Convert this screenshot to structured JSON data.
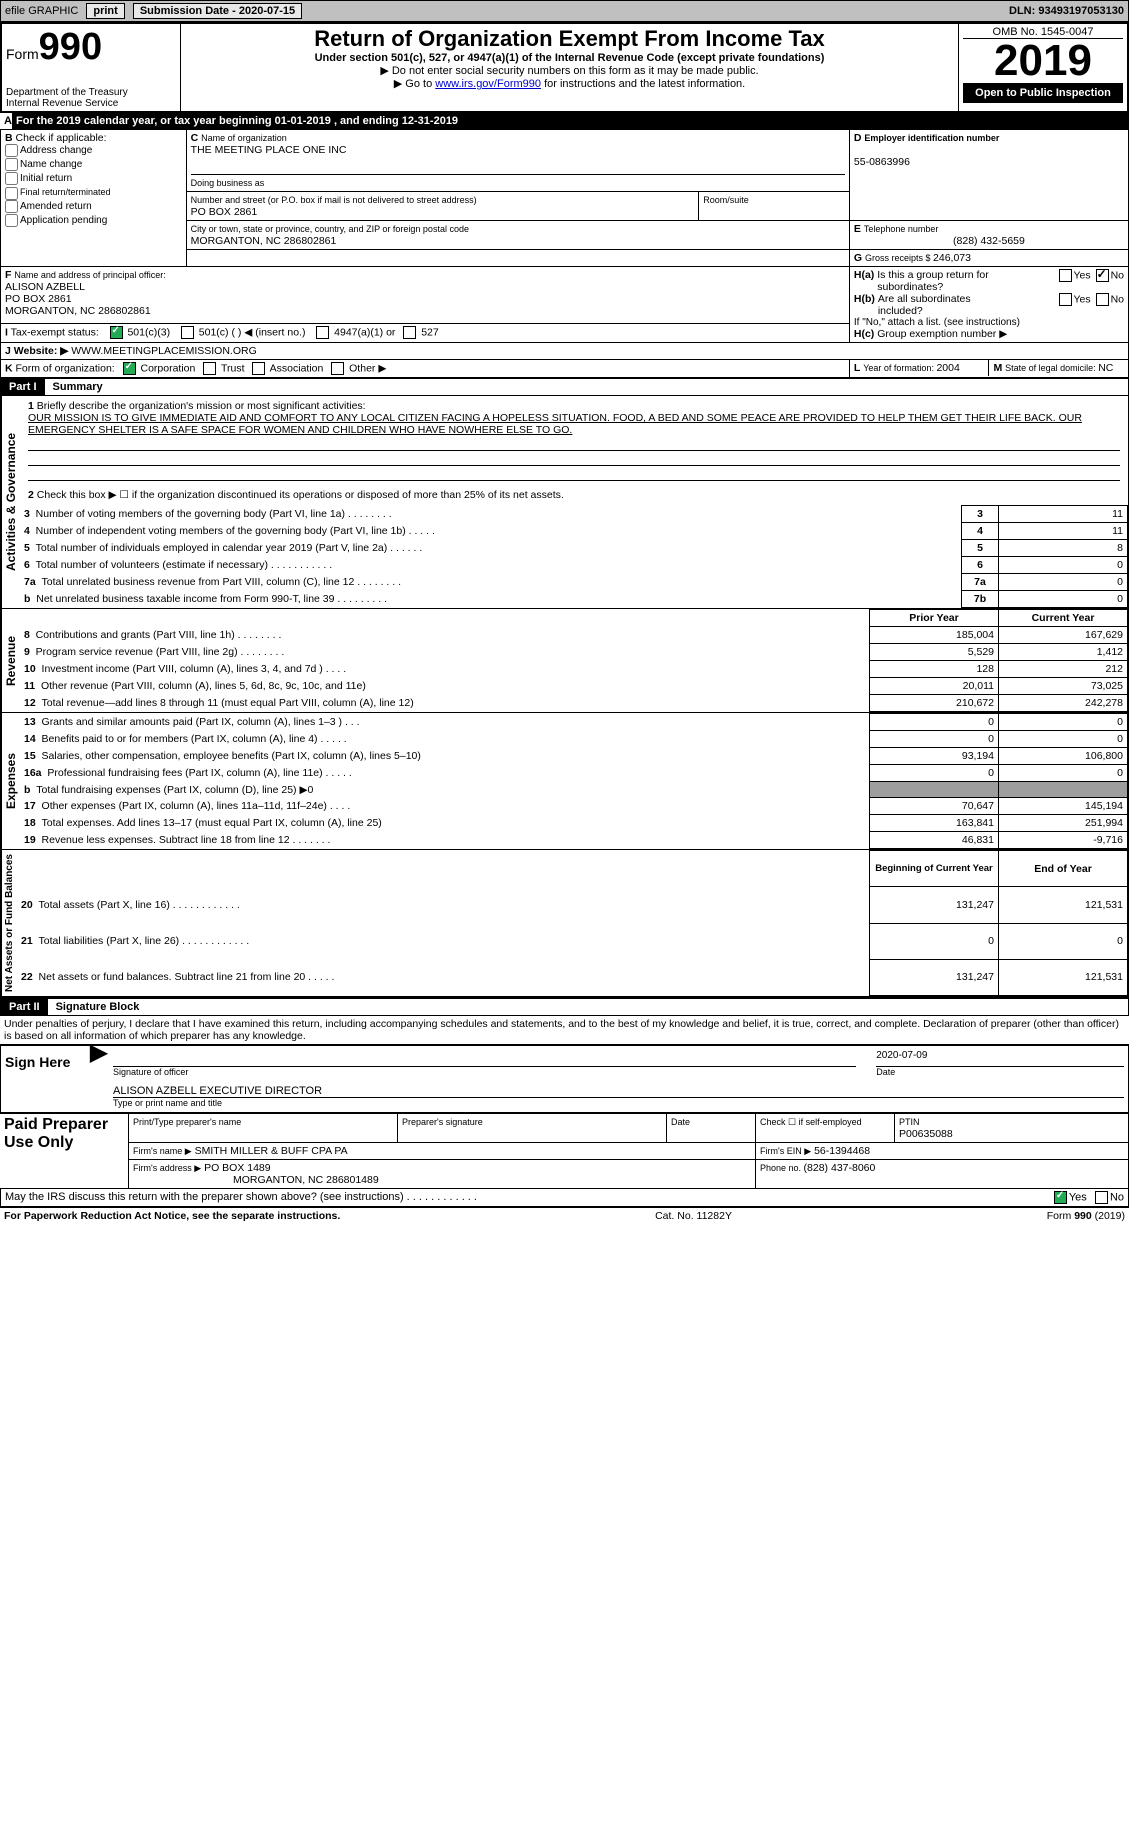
{
  "topbar": {
    "efile": "efile GRAPHIC",
    "print": "print",
    "submission_label": "Submission Date - ",
    "submission_date": "2020-07-15",
    "dln_label": "DLN: ",
    "dln": "93493197053130"
  },
  "header": {
    "form_word": "Form",
    "form_num": "990",
    "dept": "Department of the Treasury\nInternal Revenue Service",
    "title": "Return of Organization Exempt From Income Tax",
    "subtitle": "Under section 501(c), 527, or 4947(a)(1) of the Internal Revenue Code (except private foundations)",
    "note1": "▶ Do not enter social security numbers on this form as it may be made public.",
    "note2_pre": "▶ Go to ",
    "note2_link": "www.irs.gov/Form990",
    "note2_post": " for instructions and the latest information.",
    "omb": "OMB No. 1545-0047",
    "year": "2019",
    "open": "Open to Public Inspection"
  },
  "cal": {
    "label": "A",
    "text_pre": "For the 2019 calendar year, or tax year beginning ",
    "begin": "01-01-2019",
    "mid": "  , and ending ",
    "end": "12-31-2019"
  },
  "B": {
    "label": "B",
    "check_if": "Check if applicable:",
    "items": [
      "Address change",
      "Name change",
      "Initial return",
      "Final return/terminated",
      "Amended return",
      "Application pending"
    ]
  },
  "C": {
    "label": "C",
    "name_lbl": "Name of organization",
    "name": "THE MEETING PLACE ONE INC",
    "dba_lbl": "Doing business as",
    "dba": "",
    "street_lbl": "Number and street (or P.O. box if mail is not delivered to street address)",
    "room_lbl": "Room/suite",
    "street": "PO BOX 2861",
    "city_lbl": "City or town, state or province, country, and ZIP or foreign postal code",
    "city": "MORGANTON, NC  286802861"
  },
  "D": {
    "label": "D",
    "lbl": "Employer identification number",
    "val": "55-0863996"
  },
  "E": {
    "label": "E",
    "lbl": "Telephone number",
    "val": "(828) 432-5659"
  },
  "G": {
    "label": "G",
    "lbl": "Gross receipts $ ",
    "val": "246,073"
  },
  "F": {
    "label": "F",
    "lbl": "Name and address of principal officer:",
    "name": "ALISON AZBELL",
    "addr1": "PO BOX 2861",
    "addr2": "MORGANTON, NC  286802861"
  },
  "H": {
    "a_lbl": "H(a)",
    "a_txt": "Is this a group return for subordinates?",
    "b_lbl": "H(b)",
    "b_txt": "Are all subordinates included?",
    "b_note": "If \"No,\" attach a list. (see instructions)",
    "c_lbl": "H(c)",
    "c_txt": "Group exemption number ▶",
    "yes": "Yes",
    "no": "No"
  },
  "I": {
    "label": "I",
    "lbl": "Tax-exempt status:",
    "opts": [
      "501(c)(3)",
      "501(c) (  ) ◀ (insert no.)",
      "4947(a)(1) or",
      "527"
    ]
  },
  "J": {
    "label": "J",
    "lbl": "Website: ▶",
    "val": "WWW.MEETINGPLACEMISSION.ORG"
  },
  "K": {
    "label": "K",
    "lbl": "Form of organization:",
    "opts": [
      "Corporation",
      "Trust",
      "Association",
      "Other ▶"
    ]
  },
  "L": {
    "label": "L",
    "lbl": "Year of formation: ",
    "val": "2004"
  },
  "M": {
    "label": "M",
    "lbl": "State of legal domicile: ",
    "val": "NC"
  },
  "part1": {
    "num": "Part I",
    "title": "Summary",
    "q1_num": "1",
    "q1": "Briefly describe the organization's mission or most significant activities:",
    "mission": "OUR MISSION IS TO GIVE IMMEDIATE AID AND COMFORT TO ANY LOCAL CITIZEN FACING A HOPELESS SITUATION. FOOD, A BED AND SOME PEACE ARE PROVIDED TO HELP THEM GET THEIR LIFE BACK. OUR EMERGENCY SHELTER IS A SAFE SPACE FOR WOMEN AND CHILDREN WHO HAVE NOWHERE ELSE TO GO.",
    "q2_num": "2",
    "q2": "Check this box ▶ ☐  if the organization discontinued its operations or disposed of more than 25% of its net assets.",
    "side_gov": "Activities & Governance",
    "side_rev": "Revenue",
    "side_exp": "Expenses",
    "side_net": "Net Assets or Fund Balances",
    "rows_gov": [
      {
        "n": "3",
        "d": "Number of voting members of the governing body (Part VI, line 1a)   .     .     .     .     .     .     .     .",
        "ln": "3",
        "v": "11"
      },
      {
        "n": "4",
        "d": "Number of independent voting members of the governing body (Part VI, line 1b)    .     .     .     .     .",
        "ln": "4",
        "v": "11"
      },
      {
        "n": "5",
        "d": "Total number of individuals employed in calendar year 2019 (Part V, line 2a)    .     .     .     .     .     .",
        "ln": "5",
        "v": "8"
      },
      {
        "n": "6",
        "d": "Total number of volunteers (estimate if necessary)    .     .     .     .     .     .     .     .     .     .     .",
        "ln": "6",
        "v": "0"
      },
      {
        "n": "7a",
        "d": "Total unrelated business revenue from Part VIII, column (C), line 12    .     .     .     .     .     .     .     .",
        "ln": "7a",
        "v": "0"
      },
      {
        "n": "b",
        "d": "Net unrelated business taxable income from Form 990-T, line 39   .     .     .     .     .     .     .     .     .",
        "ln": "7b",
        "v": "0"
      }
    ],
    "col_prior": "Prior Year",
    "col_curr": "Current Year",
    "rows_rev": [
      {
        "n": "8",
        "d": "Contributions and grants (Part VIII, line 1h)    .     .     .     .     .     .     .     .",
        "p": "185,004",
        "c": "167,629"
      },
      {
        "n": "9",
        "d": "Program service revenue (Part VIII, line 2g)    .     .     .     .     .     .     .     .",
        "p": "5,529",
        "c": "1,412"
      },
      {
        "n": "10",
        "d": "Investment income (Part VIII, column (A), lines 3, 4, and 7d )    .     .     .     .",
        "p": "128",
        "c": "212"
      },
      {
        "n": "11",
        "d": "Other revenue (Part VIII, column (A), lines 5, 6d, 8c, 9c, 10c, and 11e)",
        "p": "20,011",
        "c": "73,025"
      },
      {
        "n": "12",
        "d": "Total revenue—add lines 8 through 11 (must equal Part VIII, column (A), line 12)",
        "p": "210,672",
        "c": "242,278"
      }
    ],
    "rows_exp": [
      {
        "n": "13",
        "d": "Grants and similar amounts paid (Part IX, column (A), lines 1–3 )  .     .     .",
        "p": "0",
        "c": "0"
      },
      {
        "n": "14",
        "d": "Benefits paid to or for members (Part IX, column (A), line 4)  .     .     .     .     .",
        "p": "0",
        "c": "0"
      },
      {
        "n": "15",
        "d": "Salaries, other compensation, employee benefits (Part IX, column (A), lines 5–10)",
        "p": "93,194",
        "c": "106,800"
      },
      {
        "n": "16a",
        "d": "Professional fundraising fees (Part IX, column (A), line 11e)    .     .     .     .     .",
        "p": "0",
        "c": "0"
      },
      {
        "n": "b",
        "d": "Total fundraising expenses (Part IX, column (D), line 25) ▶0",
        "p": "",
        "c": "",
        "shaded": true
      },
      {
        "n": "17",
        "d": "Other expenses (Part IX, column (A), lines 11a–11d, 11f–24e)    .     .     .     .",
        "p": "70,647",
        "c": "145,194"
      },
      {
        "n": "18",
        "d": "Total expenses. Add lines 13–17 (must equal Part IX, column (A), line 25)",
        "p": "163,841",
        "c": "251,994"
      },
      {
        "n": "19",
        "d": "Revenue less expenses. Subtract line 18 from line 12  .     .     .     .     .     .     .",
        "p": "46,831",
        "c": "-9,716"
      }
    ],
    "col_beg": "Beginning of Current Year",
    "col_end": "End of Year",
    "rows_net": [
      {
        "n": "20",
        "d": "Total assets (Part X, line 16)   .     .     .     .     .     .     .     .     .     .     .     .",
        "p": "131,247",
        "c": "121,531"
      },
      {
        "n": "21",
        "d": "Total liabilities (Part X, line 26)  .     .     .     .     .     .     .     .     .     .     .     .",
        "p": "0",
        "c": "0"
      },
      {
        "n": "22",
        "d": "Net assets or fund balances. Subtract line 21 from line 20    .     .     .     .     .",
        "p": "131,247",
        "c": "121,531"
      }
    ]
  },
  "part2": {
    "num": "Part II",
    "title": "Signature Block",
    "decl": "Under penalties of perjury, I declare that I have examined this return, including accompanying schedules and statements, and to the best of my knowledge and belief, it is true, correct, and complete. Declaration of preparer (other than officer) is based on all information of which preparer has any knowledge.",
    "sign_here": "Sign Here",
    "sig_officer": "Signature of officer",
    "date_lbl": "Date",
    "date_val": "2020-07-09",
    "name_title": "ALISON AZBELL  EXECUTIVE DIRECTOR",
    "name_title_lbl": "Type or print name and title",
    "paid_prep": "Paid Preparer Use Only",
    "prep_name_lbl": "Print/Type preparer's name",
    "prep_sig_lbl": "Preparer's signature",
    "prep_date_lbl": "Date",
    "self_emp": "Check ☐ if self-employed",
    "ptin_lbl": "PTIN",
    "ptin": "P00635088",
    "firm_name_lbl": "Firm's name    ▶",
    "firm_name": "SMITH MILLER & BUFF CPA PA",
    "firm_ein_lbl": "Firm's EIN ▶",
    "firm_ein": "56-1394468",
    "firm_addr_lbl": "Firm's address ▶",
    "firm_addr": "PO BOX 1489",
    "firm_addr2": "MORGANTON, NC  286801489",
    "phone_lbl": "Phone no. ",
    "phone": "(828) 437-8060",
    "discuss": "May the IRS discuss this return with the preparer shown above? (see instructions)    .     .     .     .     .     .     .     .     .     .     .     .",
    "yes": "Yes",
    "no": "No"
  },
  "footer": {
    "left": "For Paperwork Reduction Act Notice, see the separate instructions.",
    "mid": "Cat. No. 11282Y",
    "right": "Form 990 (2019)"
  },
  "colors": {
    "topbar_bg": "#c0c0c0",
    "black": "#000000",
    "link": "#0000cc",
    "check_green": "#22aa55",
    "shade": "#9e9e9e"
  }
}
